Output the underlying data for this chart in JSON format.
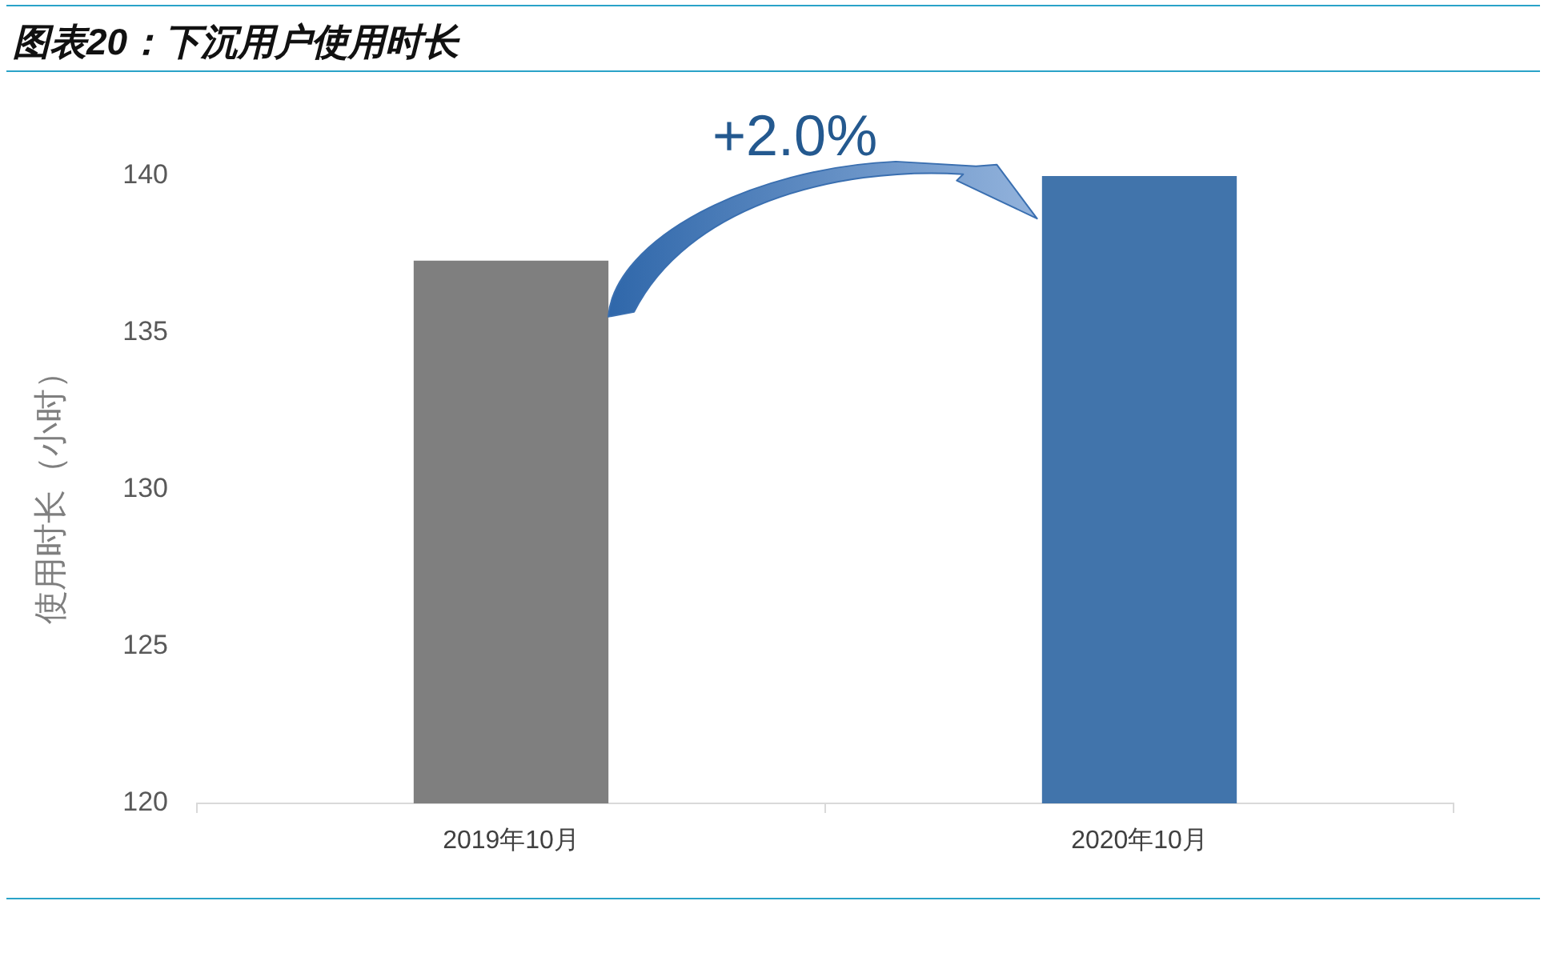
{
  "chart_data": {
    "type": "bar",
    "title": "图表20：下沉用户使用时长",
    "ylabel": "使用时长（小时）",
    "categories": [
      "2019年10月",
      "2020年10月"
    ],
    "values": [
      137.3,
      140.0
    ],
    "colors": [
      "#7f7f7f",
      "#4174ab"
    ],
    "ylim": [
      120,
      140
    ],
    "yticks": [
      120,
      125,
      130,
      135,
      140
    ],
    "grid": false,
    "legend": false,
    "annotations": [
      "+2.0%"
    ]
  }
}
